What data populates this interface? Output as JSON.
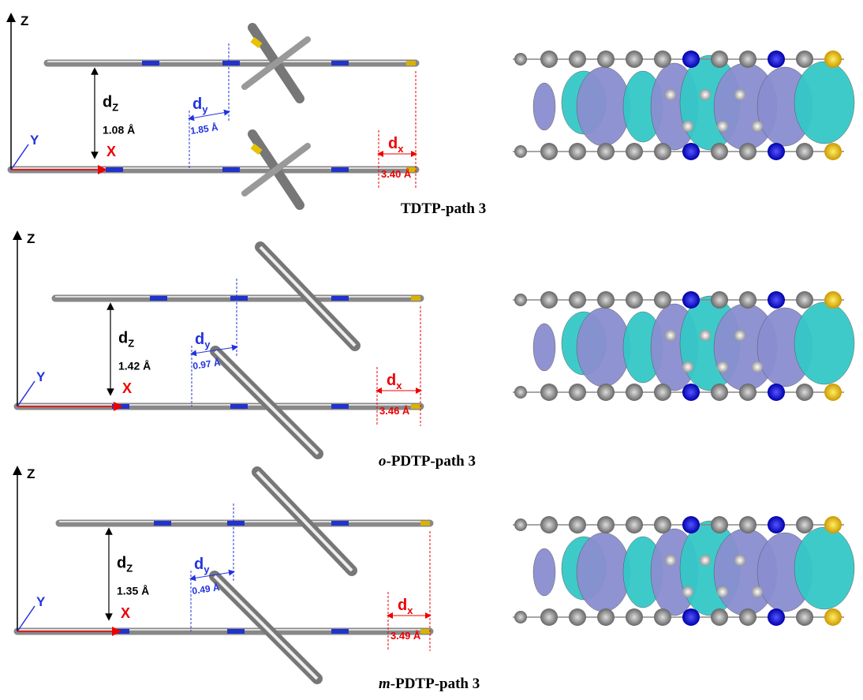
{
  "panels": [
    {
      "axes": {
        "z": "Z",
        "y": "Y",
        "x": "X"
      },
      "dz": {
        "symbol": "d",
        "subscript": "Z",
        "value": "1.08 Å"
      },
      "dy": {
        "symbol": "d",
        "subscript": "y",
        "value": "1.85 Å"
      },
      "dx": {
        "symbol": "d",
        "subscript": "x",
        "value": "3.40 Å"
      },
      "caption": {
        "text": "TDTP-path 3"
      }
    },
    {
      "axes": {
        "z": "Z",
        "y": "Y",
        "x": "X"
      },
      "dz": {
        "symbol": "d",
        "subscript": "Z",
        "value": "1.42 Å"
      },
      "dy": {
        "symbol": "d",
        "subscript": "y",
        "value": "0.97 Å"
      },
      "dx": {
        "symbol": "d",
        "subscript": "x",
        "value": "3.46 Å"
      },
      "caption": {
        "prefix": "o",
        "text": "-PDTP-path 3"
      }
    },
    {
      "axes": {
        "z": "Z",
        "y": "Y",
        "x": "X"
      },
      "dz": {
        "symbol": "d",
        "subscript": "Z",
        "value": "1.35 Å"
      },
      "dy": {
        "symbol": "d",
        "subscript": "y",
        "value": "0.49 Å"
      },
      "dx": {
        "symbol": "d",
        "subscript": "x",
        "value": "3.49 Å"
      },
      "caption": {
        "prefix": "m",
        "text": "-PDTP-path 3"
      }
    }
  ]
}
